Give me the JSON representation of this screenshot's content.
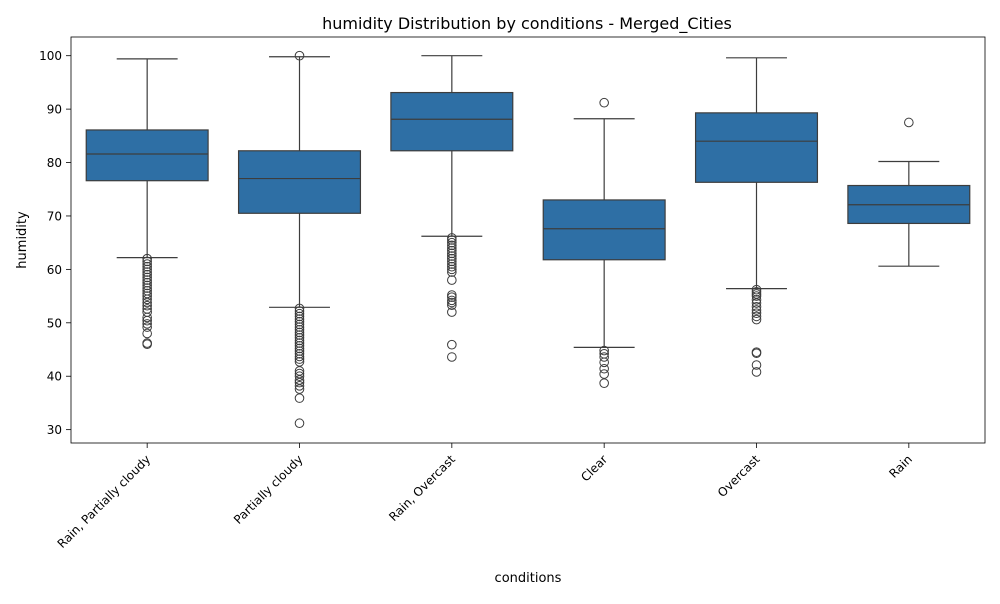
{
  "chart_data": {
    "type": "box",
    "title": "humidity Distribution by conditions - Merged_Cities",
    "xlabel": "conditions",
    "ylabel": "humidity",
    "ylim": [
      27.5,
      103.5
    ],
    "yticks": [
      30,
      40,
      50,
      60,
      70,
      80,
      90,
      100
    ],
    "box_color": "#2e6fa5",
    "categories": [
      "Rain, Partially cloudy",
      "Partially cloudy",
      "Rain, Overcast",
      "Clear",
      "Overcast",
      "Rain"
    ],
    "boxes": [
      {
        "category": "Rain, Partially cloudy",
        "whisker_low": 62.2,
        "q1": 76.6,
        "median": 81.6,
        "q3": 86.1,
        "whisker_high": 99.4,
        "outliers": [
          62.0,
          61.5,
          61.0,
          60.5,
          60.0,
          59.5,
          59.0,
          58.5,
          58.0,
          57.5,
          57.0,
          56.5,
          56.0,
          55.5,
          55.0,
          54.4,
          53.8,
          53.2,
          52.6,
          52.0,
          51.0,
          50.4,
          49.8,
          49.2,
          48.0,
          46.2,
          46.0
        ]
      },
      {
        "category": "Partially cloudy",
        "whisker_low": 52.9,
        "q1": 70.5,
        "median": 77.0,
        "q3": 82.2,
        "whisker_high": 99.8,
        "outliers": [
          100.0,
          52.7,
          52.2,
          51.7,
          51.2,
          50.7,
          50.2,
          49.7,
          49.2,
          48.7,
          48.2,
          47.7,
          47.2,
          46.7,
          46.2,
          45.7,
          45.2,
          44.7,
          44.2,
          43.7,
          43.2,
          42.7,
          41.0,
          40.5,
          40.0,
          39.3,
          38.8,
          38.2,
          37.6,
          35.9,
          31.2
        ]
      },
      {
        "category": "Rain, Overcast",
        "whisker_low": 66.2,
        "q1": 82.2,
        "median": 88.1,
        "q3": 93.1,
        "whisker_high": 100.0,
        "outliers": [
          65.9,
          65.5,
          65.0,
          64.5,
          64.0,
          63.5,
          63.0,
          62.5,
          62.0,
          61.5,
          61.0,
          60.5,
          60.0,
          59.5,
          58.0,
          55.2,
          54.8,
          54.2,
          53.8,
          53.3,
          52.0,
          45.9,
          43.6
        ]
      },
      {
        "category": "Clear",
        "whisker_low": 45.4,
        "q1": 61.8,
        "median": 67.6,
        "q3": 73.0,
        "whisker_high": 88.2,
        "outliers": [
          91.2,
          44.8,
          44.2,
          43.6,
          42.6,
          41.4,
          40.4,
          38.7
        ]
      },
      {
        "category": "Overcast",
        "whisker_low": 56.4,
        "q1": 76.3,
        "median": 84.0,
        "q3": 89.3,
        "whisker_high": 99.6,
        "outliers": [
          56.2,
          55.8,
          55.4,
          55.0,
          54.3,
          53.7,
          53.0,
          52.4,
          51.8,
          51.2,
          50.6,
          44.5,
          44.3,
          42.1,
          40.8
        ]
      },
      {
        "category": "Rain",
        "whisker_low": 60.6,
        "q1": 68.6,
        "median": 72.1,
        "q3": 75.7,
        "whisker_high": 80.2,
        "outliers": [
          87.5
        ]
      }
    ]
  }
}
